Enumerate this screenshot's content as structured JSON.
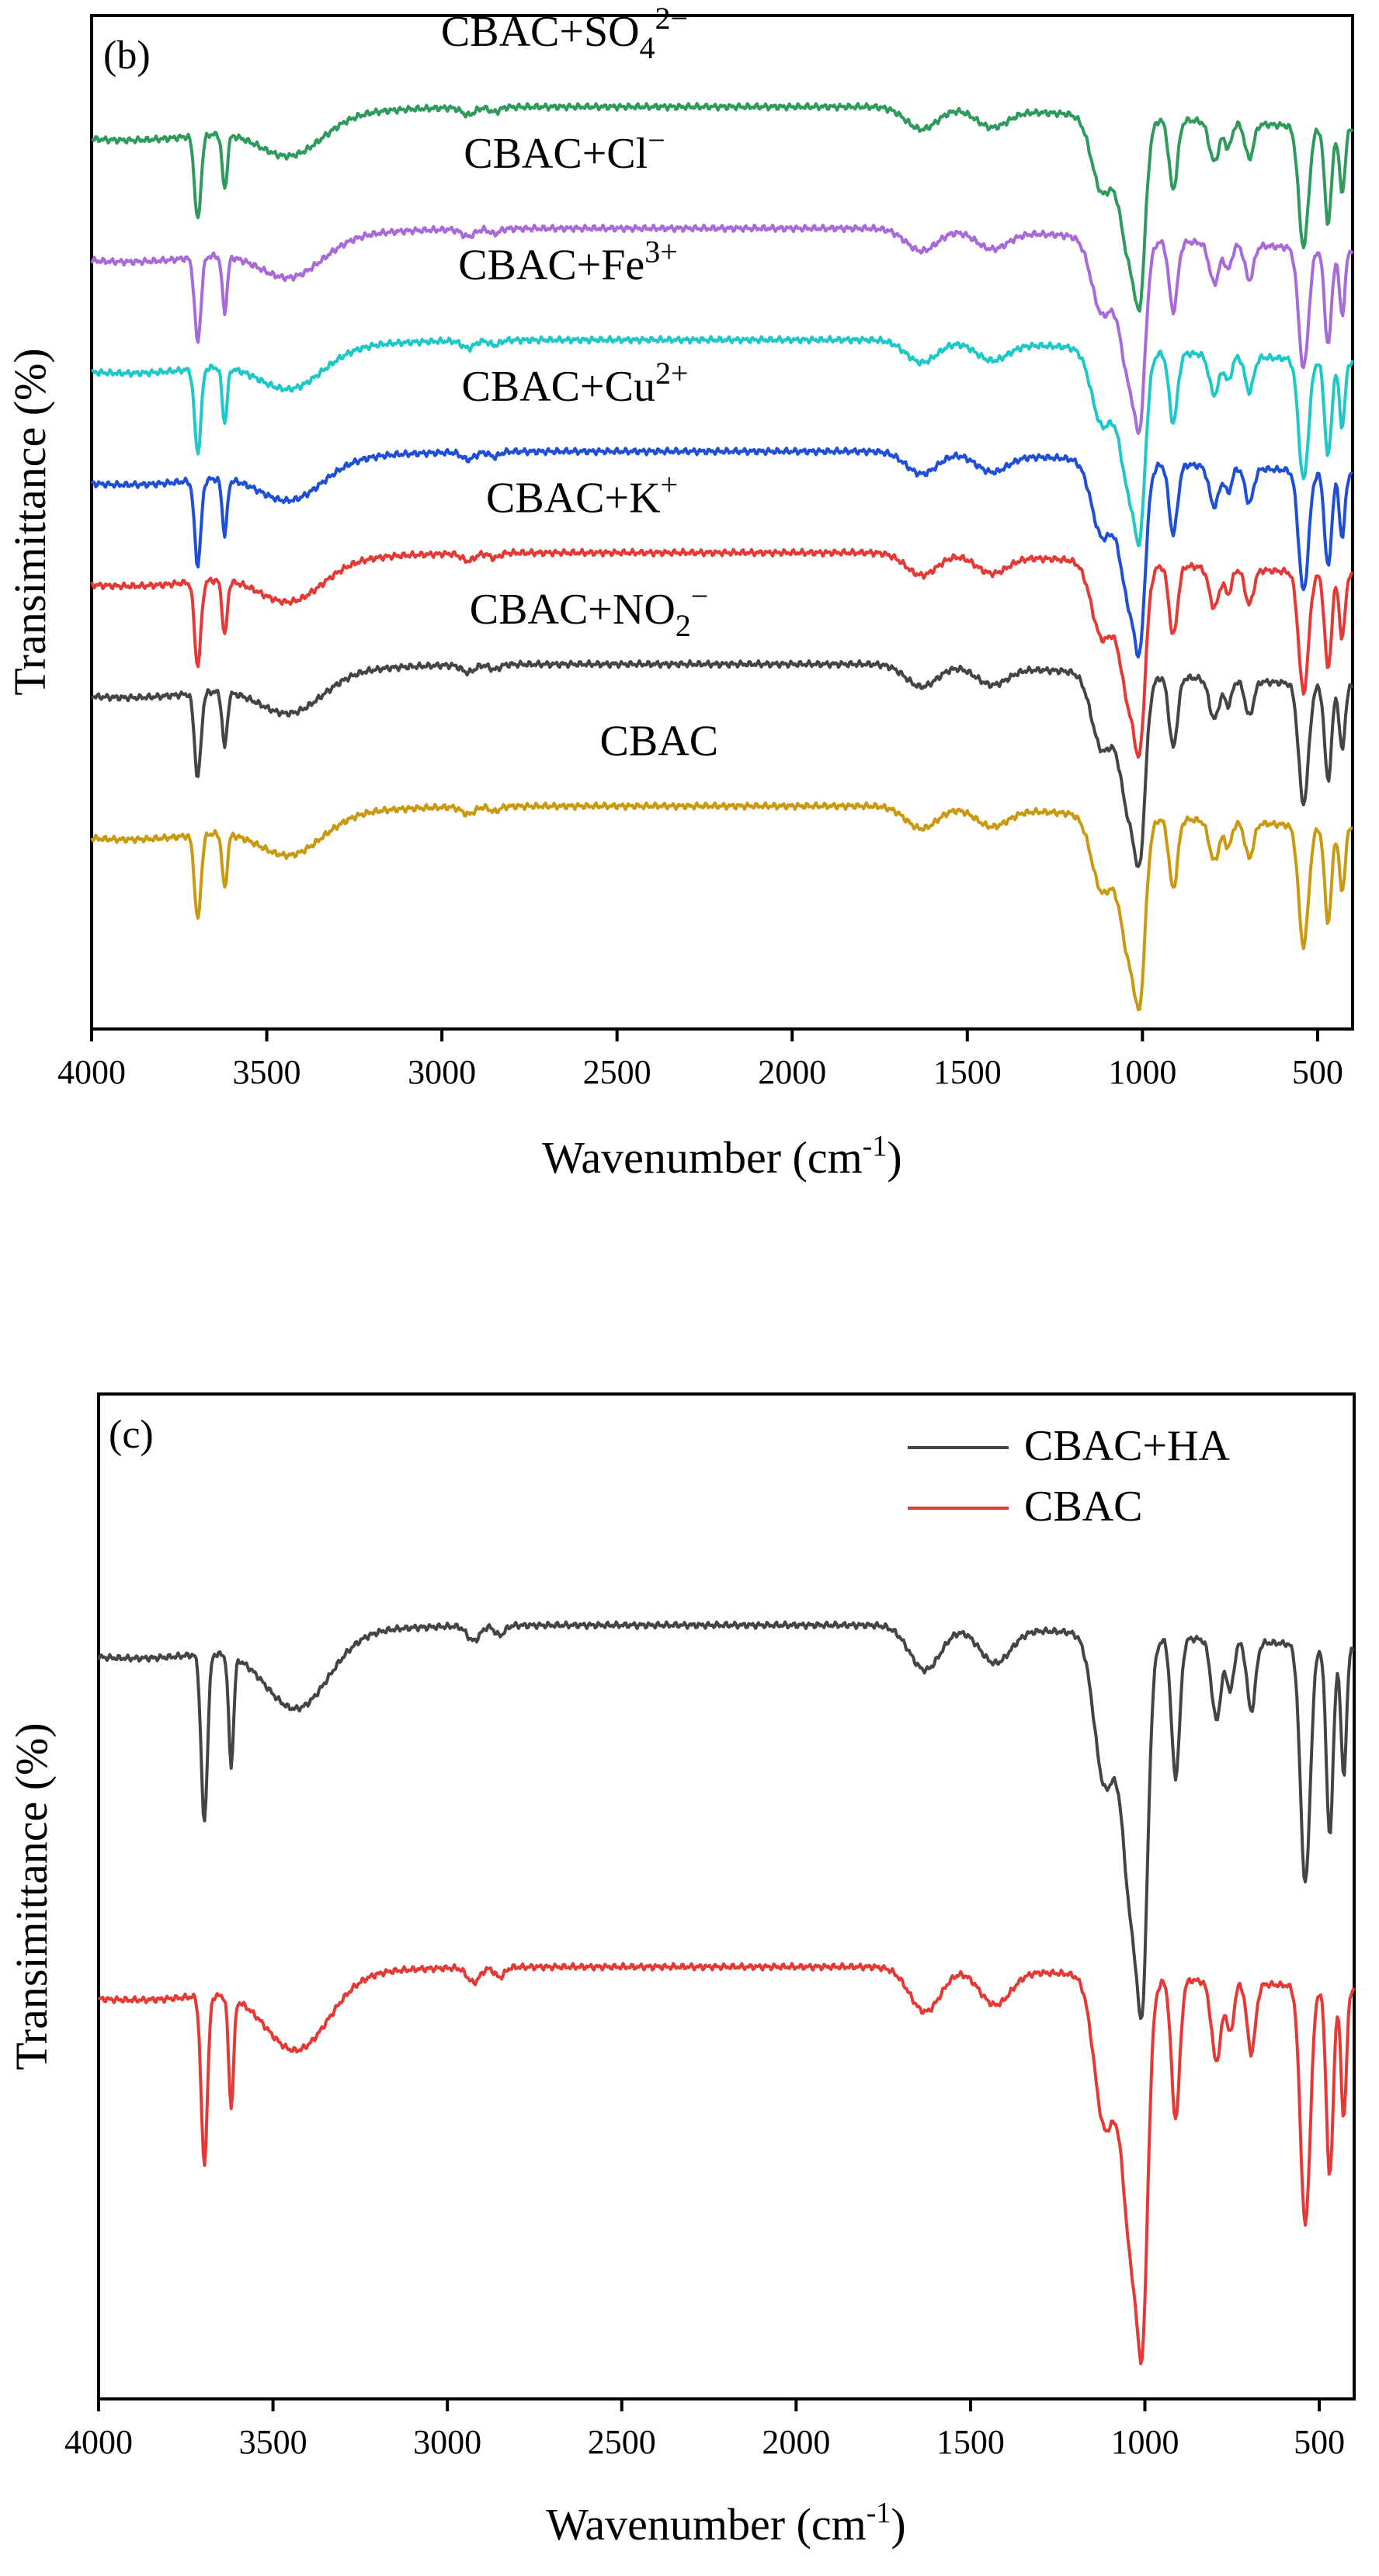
{
  "chart_data": [
    {
      "panel_label": "(b)",
      "type": "line",
      "title": "",
      "xlabel_prefix": "Wavenumber (cm",
      "xlabel_sup": "-1",
      "xlabel_suffix": ")",
      "ylabel": "Transimittance (%)",
      "xlim": [
        4000,
        400
      ],
      "xticks": [
        "4000",
        "3500",
        "3000",
        "2500",
        "2000",
        "1500",
        "1000",
        "500"
      ],
      "xtick_values": [
        4000,
        3500,
        3000,
        2500,
        2000,
        1500,
        1000,
        500
      ],
      "ylim": [
        0,
        100
      ],
      "grid": false,
      "series": [
        {
          "name": "CBAC+SO₄²⁻",
          "label": {
            "base": "CBAC+SO",
            "sub": "4",
            "sup": "2−"
          },
          "color": "#2e9a5c",
          "offset": 91,
          "xlab": 2650,
          "ylabOffset": 6
        },
        {
          "name": "CBAC+Cl⁻",
          "label": {
            "base": "CBAC+Cl",
            "sub": "",
            "sup": "−"
          },
          "color": "#a86ad8",
          "offset": 79,
          "xlab": 2650,
          "ylabOffset": 6
        },
        {
          "name": "CBAC+Fe³⁺",
          "label": {
            "base": "CBAC+Fe",
            "sub": "",
            "sup": "3+"
          },
          "color": "#1ec8c8",
          "offset": 68,
          "xlab": 2640,
          "ylabOffset": 6
        },
        {
          "name": "CBAC+Cu²⁺",
          "label": {
            "base": "CBAC+Cu",
            "sub": "",
            "sup": "2+"
          },
          "color": "#1e4fd6",
          "offset": 57,
          "xlab": 2620,
          "ylabOffset": 5
        },
        {
          "name": "CBAC+K⁺",
          "label": {
            "base": "CBAC+K",
            "sub": "",
            "sup": "+"
          },
          "color": "#e53935",
          "offset": 47,
          "xlab": 2600,
          "ylabOffset": 4
        },
        {
          "name": "CBAC+NO₂⁻",
          "label": {
            "base": "CBAC+NO",
            "sub": "2",
            "sup": "−"
          },
          "color": "#444444",
          "offset": 36,
          "xlab": 2580,
          "ylabOffset": 4
        },
        {
          "name": "CBAC",
          "label": {
            "base": "CBAC",
            "sub": "",
            "sup": ""
          },
          "color": "#c99a10",
          "offset": 22,
          "xlab": 2380,
          "ylabOffset": 5
        }
      ]
    },
    {
      "panel_label": "(c)",
      "type": "line",
      "title": "",
      "xlabel_prefix": "Wavenumber (cm",
      "xlabel_sup": "-1",
      "xlabel_suffix": ")",
      "ylabel": "Transimittance (%)",
      "xlim": [
        4000,
        400
      ],
      "xticks": [
        "4000",
        "3500",
        "3000",
        "2500",
        "2000",
        "1500",
        "1000",
        "500"
      ],
      "xtick_values": [
        4000,
        3500,
        3000,
        2500,
        2000,
        1500,
        1000,
        500
      ],
      "ylim": [
        0,
        100
      ],
      "grid": false,
      "legend": {
        "placement": "top-right"
      },
      "series": [
        {
          "name": "CBAC+HA",
          "label": {
            "base": "CBAC+HA",
            "sub": "",
            "sup": ""
          },
          "color": "#444444",
          "offset": 77
        },
        {
          "name": "CBAC",
          "label": {
            "base": "CBAC",
            "sub": "",
            "sup": ""
          },
          "color": "#e53935",
          "offset": 43
        }
      ]
    }
  ]
}
